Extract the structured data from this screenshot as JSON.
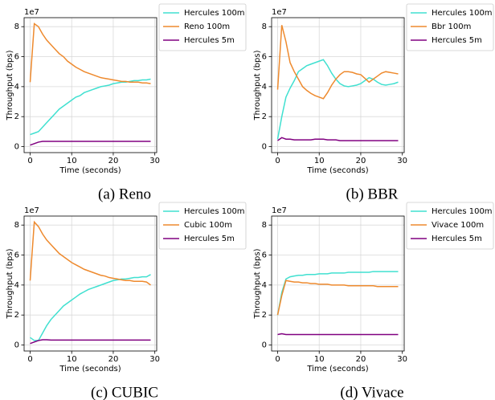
{
  "chart_data": [
    {
      "type": "line",
      "caption": "(a) Reno",
      "offset_label": "1e7",
      "xlabel": "Time (seconds)",
      "ylabel": "Throughput (bps)",
      "x": [
        0,
        1,
        2,
        3,
        4,
        5,
        6,
        7,
        8,
        9,
        10,
        11,
        12,
        13,
        14,
        15,
        16,
        17,
        18,
        19,
        20,
        21,
        22,
        23,
        24,
        25,
        26,
        27,
        28,
        29
      ],
      "xlim": [
        -1.45,
        30.45
      ],
      "xticks": [
        0,
        10,
        20,
        30
      ],
      "ylim": [
        -0.4,
        8.6
      ],
      "yticks": [
        0,
        2,
        4,
        6,
        8
      ],
      "grid": true,
      "legend": "outside right",
      "series": [
        {
          "name": "Hercules 100m",
          "color": "#40e0d0",
          "values": [
            0.8,
            0.9,
            1.0,
            1.3,
            1.6,
            1.9,
            2.2,
            2.5,
            2.7,
            2.9,
            3.1,
            3.3,
            3.4,
            3.6,
            3.7,
            3.8,
            3.9,
            4.0,
            4.05,
            4.1,
            4.2,
            4.25,
            4.3,
            4.3,
            4.35,
            4.4,
            4.4,
            4.45,
            4.45,
            4.5
          ]
        },
        {
          "name": "Reno 100m",
          "color": "#ee8a2e",
          "values": [
            4.3,
            8.2,
            8.0,
            7.5,
            7.1,
            6.8,
            6.5,
            6.2,
            6.0,
            5.7,
            5.5,
            5.3,
            5.15,
            5.0,
            4.9,
            4.8,
            4.7,
            4.6,
            4.55,
            4.5,
            4.45,
            4.4,
            4.35,
            4.35,
            4.3,
            4.3,
            4.3,
            4.25,
            4.25,
            4.2
          ]
        },
        {
          "name": "Hercules 5m",
          "color": "#800080",
          "values": [
            0.1,
            0.2,
            0.3,
            0.35,
            0.35,
            0.35,
            0.35,
            0.35,
            0.35,
            0.35,
            0.35,
            0.35,
            0.35,
            0.35,
            0.35,
            0.35,
            0.35,
            0.35,
            0.35,
            0.35,
            0.35,
            0.35,
            0.35,
            0.35,
            0.35,
            0.35,
            0.35,
            0.35,
            0.35,
            0.35
          ]
        }
      ]
    },
    {
      "type": "line",
      "caption": "(b) BBR",
      "offset_label": "1e7",
      "xlabel": "Time (seconds)",
      "ylabel": "Throughput (bps)",
      "x": [
        0,
        1,
        2,
        3,
        4,
        5,
        6,
        7,
        8,
        9,
        10,
        11,
        12,
        13,
        14,
        15,
        16,
        17,
        18,
        19,
        20,
        21,
        22,
        23,
        24,
        25,
        26,
        27,
        28,
        29
      ],
      "xlim": [
        -1.45,
        30.45
      ],
      "xticks": [
        0,
        10,
        20,
        30
      ],
      "ylim": [
        -0.4,
        8.6
      ],
      "yticks": [
        0,
        2,
        4,
        6,
        8
      ],
      "grid": true,
      "legend": "outside right",
      "series": [
        {
          "name": "Hercules 100m",
          "color": "#40e0d0",
          "values": [
            0.5,
            2.0,
            3.3,
            3.9,
            4.4,
            5.0,
            5.2,
            5.4,
            5.5,
            5.6,
            5.7,
            5.8,
            5.4,
            4.9,
            4.5,
            4.2,
            4.05,
            4.0,
            4.05,
            4.1,
            4.2,
            4.4,
            4.6,
            4.5,
            4.3,
            4.15,
            4.1,
            4.15,
            4.2,
            4.3
          ]
        },
        {
          "name": "Bbr 100m",
          "color": "#ee8a2e",
          "values": [
            3.8,
            8.1,
            7.0,
            5.6,
            5.0,
            4.5,
            4.0,
            3.75,
            3.55,
            3.4,
            3.3,
            3.2,
            3.6,
            4.1,
            4.5,
            4.8,
            5.0,
            5.0,
            4.95,
            4.85,
            4.8,
            4.55,
            4.3,
            4.5,
            4.7,
            4.9,
            5.0,
            4.95,
            4.9,
            4.85
          ]
        },
        {
          "name": "Hercules 5m",
          "color": "#800080",
          "values": [
            0.4,
            0.6,
            0.5,
            0.5,
            0.45,
            0.45,
            0.45,
            0.45,
            0.45,
            0.5,
            0.5,
            0.5,
            0.45,
            0.45,
            0.45,
            0.4,
            0.4,
            0.4,
            0.4,
            0.4,
            0.4,
            0.4,
            0.4,
            0.4,
            0.4,
            0.4,
            0.4,
            0.4,
            0.4,
            0.4
          ]
        }
      ]
    },
    {
      "type": "line",
      "caption": "(c) CUBIC",
      "offset_label": "1e7",
      "xlabel": "Time (seconds)",
      "ylabel": "Throughput (bps)",
      "x": [
        0,
        1,
        2,
        3,
        4,
        5,
        6,
        7,
        8,
        9,
        10,
        11,
        12,
        13,
        14,
        15,
        16,
        17,
        18,
        19,
        20,
        21,
        22,
        23,
        24,
        25,
        26,
        27,
        28,
        29
      ],
      "xlim": [
        -1.45,
        30.45
      ],
      "xticks": [
        0,
        10,
        20,
        30
      ],
      "ylim": [
        -0.4,
        8.6
      ],
      "yticks": [
        0,
        2,
        4,
        6,
        8
      ],
      "grid": true,
      "legend": "outside right",
      "series": [
        {
          "name": "Hercules 100m",
          "color": "#40e0d0",
          "values": [
            0.5,
            0.3,
            0.3,
            0.8,
            1.3,
            1.7,
            2.0,
            2.3,
            2.6,
            2.8,
            3.0,
            3.2,
            3.4,
            3.55,
            3.7,
            3.8,
            3.9,
            4.0,
            4.1,
            4.2,
            4.3,
            4.35,
            4.4,
            4.4,
            4.45,
            4.5,
            4.5,
            4.55,
            4.55,
            4.7
          ]
        },
        {
          "name": "Cubic 100m",
          "color": "#ee8a2e",
          "values": [
            4.3,
            8.2,
            7.9,
            7.4,
            7.0,
            6.7,
            6.4,
            6.1,
            5.9,
            5.7,
            5.5,
            5.35,
            5.2,
            5.05,
            4.95,
            4.85,
            4.75,
            4.65,
            4.6,
            4.5,
            4.45,
            4.4,
            4.35,
            4.3,
            4.3,
            4.25,
            4.25,
            4.25,
            4.2,
            4.0
          ]
        },
        {
          "name": "Hercules 5m",
          "color": "#800080",
          "values": [
            0.1,
            0.2,
            0.3,
            0.35,
            0.35,
            0.33,
            0.33,
            0.33,
            0.33,
            0.33,
            0.33,
            0.33,
            0.33,
            0.33,
            0.33,
            0.33,
            0.33,
            0.33,
            0.33,
            0.33,
            0.33,
            0.33,
            0.33,
            0.33,
            0.33,
            0.33,
            0.33,
            0.33,
            0.33,
            0.33
          ]
        }
      ]
    },
    {
      "type": "line",
      "caption": "(d) Vivace",
      "offset_label": "1e7",
      "xlabel": "Time (seconds)",
      "ylabel": "Throughput (bps)",
      "x": [
        0,
        1,
        2,
        3,
        4,
        5,
        6,
        7,
        8,
        9,
        10,
        11,
        12,
        13,
        14,
        15,
        16,
        17,
        18,
        19,
        20,
        21,
        22,
        23,
        24,
        25,
        26,
        27,
        28,
        29
      ],
      "xlim": [
        -1.45,
        30.45
      ],
      "xticks": [
        0,
        10,
        20,
        30
      ],
      "ylim": [
        -0.4,
        8.6
      ],
      "yticks": [
        0,
        2,
        4,
        6,
        8
      ],
      "grid": true,
      "legend": "outside right",
      "series": [
        {
          "name": "Hercules 100m",
          "color": "#40e0d0",
          "values": [
            2.0,
            3.5,
            4.4,
            4.55,
            4.6,
            4.65,
            4.65,
            4.7,
            4.7,
            4.7,
            4.75,
            4.75,
            4.75,
            4.8,
            4.8,
            4.8,
            4.8,
            4.85,
            4.85,
            4.85,
            4.85,
            4.85,
            4.85,
            4.9,
            4.9,
            4.9,
            4.9,
            4.9,
            4.9,
            4.9
          ]
        },
        {
          "name": "Vivace 100m",
          "color": "#ee8a2e",
          "values": [
            2.0,
            3.3,
            4.3,
            4.25,
            4.2,
            4.2,
            4.15,
            4.15,
            4.1,
            4.1,
            4.05,
            4.05,
            4.05,
            4.0,
            4.0,
            4.0,
            4.0,
            3.95,
            3.95,
            3.95,
            3.95,
            3.95,
            3.95,
            3.95,
            3.9,
            3.9,
            3.9,
            3.9,
            3.9,
            3.9
          ]
        },
        {
          "name": "Hercules 5m",
          "color": "#800080",
          "values": [
            0.7,
            0.75,
            0.7,
            0.7,
            0.7,
            0.7,
            0.7,
            0.7,
            0.7,
            0.7,
            0.7,
            0.7,
            0.7,
            0.7,
            0.7,
            0.7,
            0.7,
            0.7,
            0.7,
            0.7,
            0.7,
            0.7,
            0.7,
            0.7,
            0.7,
            0.7,
            0.7,
            0.7,
            0.7,
            0.7
          ]
        }
      ]
    }
  ]
}
